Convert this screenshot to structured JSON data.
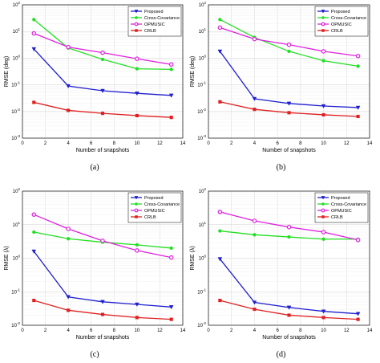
{
  "chart_data": [
    {
      "type": "line",
      "caption": "(a)",
      "xlabel": "Number of snapshots",
      "ylabel": "RMSE (deg)",
      "xlim": [
        0,
        14
      ],
      "xticks": [
        0,
        2,
        4,
        6,
        8,
        10,
        12,
        14
      ],
      "ylim": [
        0.001,
        100
      ],
      "yscale": "log",
      "yticks": [
        0.001,
        0.01,
        0.1,
        1,
        10,
        100
      ],
      "ytick_labels": [
        [
          "10",
          "-3"
        ],
        [
          "10",
          "-2"
        ],
        [
          "10",
          "-1"
        ],
        [
          "10",
          "0"
        ],
        [
          "10",
          "1"
        ],
        [
          "10",
          "2"
        ]
      ],
      "legend_position": "top-right",
      "x": [
        1,
        4,
        7,
        10,
        13
      ],
      "series": [
        {
          "name": "Proposed",
          "color": "#1f1fd0",
          "marker": "triangle-down",
          "values": [
            2.2,
            0.09,
            0.06,
            0.048,
            0.04
          ]
        },
        {
          "name": "Cross-Covariance",
          "color": "#22e022",
          "marker": "circle",
          "values": [
            28,
            2.4,
            0.9,
            0.4,
            0.38
          ]
        },
        {
          "name": "OPMUSIC",
          "color": "#e020e0",
          "marker": "circle-open",
          "values": [
            8.5,
            2.6,
            1.6,
            0.95,
            0.58
          ]
        },
        {
          "name": "CRLB",
          "color": "#e01f1f",
          "marker": "square",
          "values": [
            0.022,
            0.011,
            0.0085,
            0.007,
            0.006
          ]
        }
      ]
    },
    {
      "type": "line",
      "caption": "(b)",
      "xlabel": "Number of snapshots",
      "ylabel": "RMSE (deg)",
      "xlim": [
        0,
        14
      ],
      "xticks": [
        0,
        2,
        4,
        6,
        8,
        10,
        12,
        14
      ],
      "ylim": [
        0.001,
        100
      ],
      "yscale": "log",
      "yticks": [
        0.001,
        0.01,
        0.1,
        1,
        10,
        100
      ],
      "ytick_labels": [
        [
          "10",
          "-3"
        ],
        [
          "10",
          "-2"
        ],
        [
          "10",
          "-1"
        ],
        [
          "10",
          "0"
        ],
        [
          "10",
          "1"
        ],
        [
          "10",
          "2"
        ]
      ],
      "legend_position": "top-right",
      "x": [
        1,
        4,
        7,
        10,
        13
      ],
      "series": [
        {
          "name": "Proposed",
          "color": "#1f1fd0",
          "marker": "triangle-down",
          "values": [
            1.8,
            0.03,
            0.02,
            0.016,
            0.014
          ]
        },
        {
          "name": "Cross-Covariance",
          "color": "#22e022",
          "marker": "circle",
          "values": [
            28,
            6.0,
            1.8,
            0.8,
            0.5
          ]
        },
        {
          "name": "OPMUSIC",
          "color": "#e020e0",
          "marker": "circle-open",
          "values": [
            14,
            5.2,
            3.2,
            1.8,
            1.2
          ]
        },
        {
          "name": "CRLB",
          "color": "#e01f1f",
          "marker": "square",
          "values": [
            0.023,
            0.012,
            0.009,
            0.0075,
            0.0065
          ]
        }
      ]
    },
    {
      "type": "line",
      "caption": "(c)",
      "xlabel": "Number of snapshots",
      "ylabel": "RMSE (λ)",
      "xlim": [
        0,
        14
      ],
      "xticks": [
        0,
        2,
        4,
        6,
        8,
        10,
        12,
        14
      ],
      "ylim": [
        0.01,
        100
      ],
      "yscale": "log",
      "yticks": [
        0.01,
        0.1,
        1,
        10,
        100
      ],
      "ytick_labels": [
        [
          "10",
          "-2"
        ],
        [
          "10",
          "-1"
        ],
        [
          "10",
          "0"
        ],
        [
          "10",
          "1"
        ],
        [
          "10",
          "2"
        ]
      ],
      "legend_position": "top-right",
      "x": [
        1,
        4,
        7,
        10,
        13
      ],
      "series": [
        {
          "name": "Proposed",
          "color": "#1f1fd0",
          "marker": "triangle-down",
          "values": [
            1.6,
            0.07,
            0.05,
            0.042,
            0.035
          ]
        },
        {
          "name": "Cross-Covariance",
          "color": "#22e022",
          "marker": "circle",
          "values": [
            6.0,
            3.8,
            3.0,
            2.5,
            2.0
          ]
        },
        {
          "name": "OPMUSIC",
          "color": "#e020e0",
          "marker": "circle-open",
          "values": [
            20,
            7.5,
            3.3,
            1.7,
            1.05
          ]
        },
        {
          "name": "CRLB",
          "color": "#e01f1f",
          "marker": "square",
          "values": [
            0.055,
            0.028,
            0.021,
            0.017,
            0.015
          ]
        }
      ]
    },
    {
      "type": "line",
      "caption": "(d)",
      "xlabel": "Number of snapshots",
      "ylabel": "RMSE (λ)",
      "xlim": [
        0,
        14
      ],
      "xticks": [
        0,
        2,
        4,
        6,
        8,
        10,
        12,
        14
      ],
      "ylim": [
        0.01,
        100
      ],
      "yscale": "log",
      "yticks": [
        0.01,
        0.1,
        1,
        10,
        100
      ],
      "ytick_labels": [
        [
          "10",
          "-2"
        ],
        [
          "10",
          "-1"
        ],
        [
          "10",
          "0"
        ],
        [
          "10",
          "1"
        ],
        [
          "10",
          "2"
        ]
      ],
      "legend_position": "top-right",
      "x": [
        1,
        4,
        7,
        10,
        13
      ],
      "series": [
        {
          "name": "Proposed",
          "color": "#1f1fd0",
          "marker": "triangle-down",
          "values": [
            0.95,
            0.048,
            0.034,
            0.026,
            0.022
          ]
        },
        {
          "name": "Cross-Covariance",
          "color": "#22e022",
          "marker": "circle",
          "values": [
            6.5,
            5.0,
            4.3,
            3.7,
            3.7
          ]
        },
        {
          "name": "OPMUSIC",
          "color": "#e020e0",
          "marker": "circle-open",
          "values": [
            24,
            13,
            8.5,
            6.0,
            3.5
          ]
        },
        {
          "name": "CRLB",
          "color": "#e01f1f",
          "marker": "square",
          "values": [
            0.055,
            0.03,
            0.02,
            0.017,
            0.015
          ]
        }
      ]
    }
  ]
}
